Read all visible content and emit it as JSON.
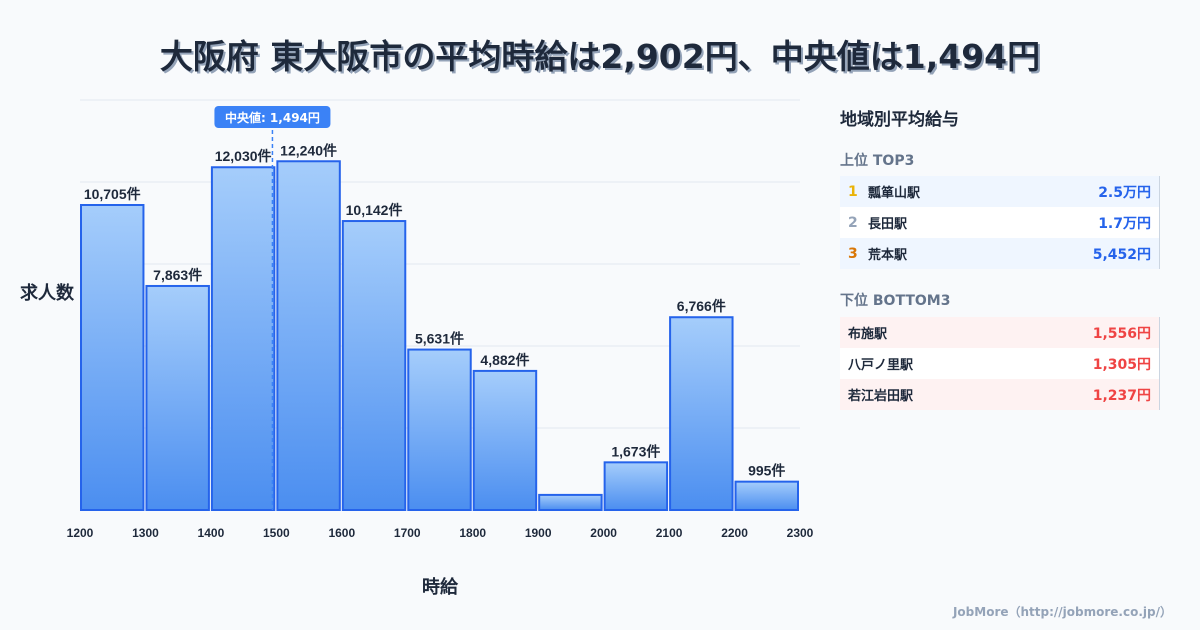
{
  "title": "大阪府 東大阪市の平均時給は2,902円、中央値は1,494円",
  "chart_data": {
    "type": "bar",
    "xlabel": "時給",
    "ylabel": "求人数",
    "x_ticks": [
      "1200",
      "1300",
      "1400",
      "1500",
      "1600",
      "1700",
      "1800",
      "1900",
      "2000",
      "2100",
      "2200",
      "2300"
    ],
    "bins": [
      1200,
      1300,
      1400,
      1500,
      1600,
      1700,
      1800,
      1900,
      2000,
      2100,
      2200
    ],
    "values": [
      10705,
      7863,
      12030,
      12240,
      10142,
      5631,
      4882,
      530,
      1673,
      6766,
      995
    ],
    "labels": [
      "10,705件",
      "7,863件",
      "12,030件",
      "12,240件",
      "10,142件",
      "5,631件",
      "4,882件",
      "",
      "1,673件",
      "6,766件",
      "995件"
    ],
    "median": 1494,
    "median_label": "中央値: 1,494円",
    "xlim": [
      1200,
      2300
    ],
    "grid": true,
    "colors": {
      "bar_top": "#a5cdfb",
      "bar_bottom": "#4b8ef0",
      "edge": "#2563eb",
      "median": "#3b82f6"
    }
  },
  "side": {
    "title": "地域別平均給与",
    "top_label": "上位 TOP3",
    "top": [
      {
        "rank": "1",
        "name": "瓢箪山駅",
        "value": "2.5万円",
        "color": "#eab308"
      },
      {
        "rank": "2",
        "name": "長田駅",
        "value": "1.7万円",
        "color": "#94a3b8"
      },
      {
        "rank": "3",
        "name": "荒本駅",
        "value": "5,452円",
        "color": "#d97706"
      }
    ],
    "bottom_label": "下位 BOTTOM3",
    "bottom": [
      {
        "name": "布施駅",
        "value": "1,556円"
      },
      {
        "name": "八戸ノ里駅",
        "value": "1,305円"
      },
      {
        "name": "若江岩田駅",
        "value": "1,237円"
      }
    ]
  },
  "footer": "JobMore（http://jobmore.co.jp/）"
}
